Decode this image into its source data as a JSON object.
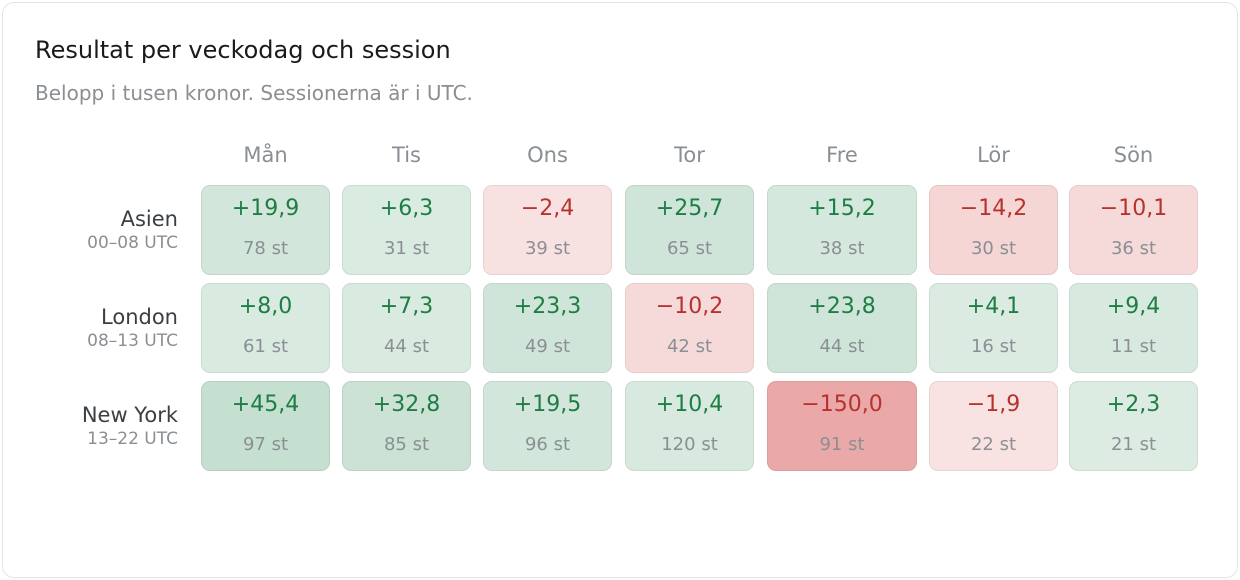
{
  "chart_data": {
    "type": "heatmap",
    "title": "Resultat per veckodag och session",
    "subtitle": "Belopp i tusen kronor. Sessionerna är i UTC.",
    "columns": [
      "Mån",
      "Tis",
      "Ons",
      "Tor",
      "Fre",
      "Lör",
      "Sön"
    ],
    "rows": [
      {
        "name": "Asien",
        "hours": "00–08 UTC",
        "values": [
          19.9,
          6.3,
          -2.4,
          25.7,
          15.2,
          -14.2,
          -10.1
        ],
        "value_labels": [
          "+19,9",
          "+6,3",
          "−2,4",
          "+25,7",
          "+15,2",
          "−14,2",
          "−10,1"
        ],
        "counts": [
          "78 st",
          "31 st",
          "39 st",
          "65 st",
          "38 st",
          "30 st",
          "36 st"
        ]
      },
      {
        "name": "London",
        "hours": "08–13 UTC",
        "values": [
          8.0,
          7.3,
          23.3,
          -10.2,
          23.8,
          4.1,
          9.4
        ],
        "value_labels": [
          "+8,0",
          "+7,3",
          "+23,3",
          "−10,2",
          "+23,8",
          "+4,1",
          "+9,4"
        ],
        "counts": [
          "61 st",
          "44 st",
          "49 st",
          "42 st",
          "44 st",
          "16 st",
          "11 st"
        ]
      },
      {
        "name": "New York",
        "hours": "13–22 UTC",
        "values": [
          45.4,
          32.8,
          19.5,
          10.4,
          -150.0,
          -1.9,
          2.3
        ],
        "value_labels": [
          "+45,4",
          "+32,8",
          "+19,5",
          "+10,4",
          "−150,0",
          "−1,9",
          "+2,3"
        ],
        "counts": [
          "97 st",
          "85 st",
          "96 st",
          "120 st",
          "91 st",
          "22 st",
          "21 st"
        ]
      }
    ],
    "colors": {
      "positive_text": "#1e7d45",
      "negative_text": "#b7322f",
      "positive_fill": "#2e8b57",
      "negative_fill": "#d0413d"
    }
  }
}
